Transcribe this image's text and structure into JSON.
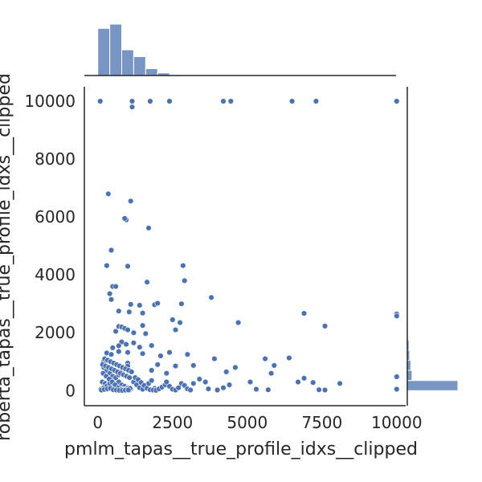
{
  "chart_data": {
    "type": "scatter",
    "kind": "jointplot with marginal histograms",
    "xlabel": "pmlm_tapas__true_profile_idxs__clipped",
    "ylabel": "roberta_tapas__true_profile_idxs__clipped",
    "xlim": [
      -450,
      10300
    ],
    "ylim": [
      -520,
      10500
    ],
    "xticks": [
      0,
      2500,
      5000,
      7500,
      10000
    ],
    "yticks": [
      0,
      2000,
      4000,
      6000,
      8000,
      10000
    ],
    "grid": false,
    "marker_color": "#4c72b0",
    "hist_color": "#4c72b0",
    "points": [
      [
        80,
        10000
      ],
      [
        1150,
        10000
      ],
      [
        1750,
        10000
      ],
      [
        2400,
        10000
      ],
      [
        4200,
        10000
      ],
      [
        4450,
        10000
      ],
      [
        6500,
        10000
      ],
      [
        7300,
        10000
      ],
      [
        10000,
        10000
      ],
      [
        1150,
        9800
      ],
      [
        350,
        6800
      ],
      [
        1100,
        6550
      ],
      [
        950,
        5900
      ],
      [
        900,
        5950
      ],
      [
        1700,
        5620
      ],
      [
        450,
        4850
      ],
      [
        300,
        4320
      ],
      [
        1000,
        4300
      ],
      [
        2850,
        4320
      ],
      [
        2900,
        3800
      ],
      [
        1650,
        3750
      ],
      [
        3800,
        3220
      ],
      [
        500,
        3600
      ],
      [
        600,
        3600
      ],
      [
        400,
        3350
      ],
      [
        450,
        3150
      ],
      [
        1100,
        2980
      ],
      [
        1400,
        2950
      ],
      [
        1900,
        2970
      ],
      [
        2000,
        3020
      ],
      [
        2800,
        3000
      ],
      [
        700,
        2750
      ],
      [
        1050,
        2720
      ],
      [
        1500,
        2680
      ],
      [
        2500,
        2450
      ],
      [
        2750,
        2350
      ],
      [
        2600,
        2100
      ],
      [
        4700,
        2350
      ],
      [
        6900,
        2670
      ],
      [
        7600,
        2230
      ],
      [
        10000,
        2650
      ],
      [
        10000,
        2580
      ],
      [
        700,
        2220
      ],
      [
        800,
        2200
      ],
      [
        900,
        2150
      ],
      [
        1000,
        2100
      ],
      [
        600,
        2050
      ],
      [
        1200,
        2000
      ],
      [
        1500,
        2250
      ],
      [
        1600,
        1970
      ],
      [
        800,
        1680
      ],
      [
        950,
        1600
      ],
      [
        1200,
        1650
      ],
      [
        1400,
        1500
      ],
      [
        1800,
        1560
      ],
      [
        700,
        1550
      ],
      [
        500,
        1480
      ],
      [
        300,
        1300
      ],
      [
        450,
        1250
      ],
      [
        700,
        1350
      ],
      [
        1000,
        1320
      ],
      [
        1500,
        1280
      ],
      [
        2100,
        1200
      ],
      [
        2400,
        1320
      ],
      [
        3000,
        1250
      ],
      [
        3900,
        1100
      ],
      [
        5600,
        1100
      ],
      [
        6400,
        1130
      ],
      [
        200,
        1000
      ],
      [
        1000,
        950
      ],
      [
        2000,
        900
      ],
      [
        2600,
        850
      ],
      [
        3200,
        870
      ],
      [
        4300,
        650
      ],
      [
        4600,
        800
      ],
      [
        5900,
        870
      ],
      [
        5800,
        600
      ],
      [
        2300,
        600
      ],
      [
        1800,
        700
      ],
      [
        200,
        800
      ],
      [
        300,
        700
      ],
      [
        400,
        600
      ],
      [
        500,
        500
      ],
      [
        600,
        400
      ],
      [
        700,
        300
      ],
      [
        800,
        200
      ],
      [
        900,
        150
      ],
      [
        1000,
        100
      ],
      [
        1100,
        50
      ],
      [
        150,
        300
      ],
      [
        250,
        250
      ],
      [
        350,
        200
      ],
      [
        450,
        150
      ],
      [
        550,
        100
      ],
      [
        650,
        80
      ],
      [
        750,
        60
      ],
      [
        850,
        40
      ],
      [
        950,
        20
      ],
      [
        1050,
        10
      ],
      [
        100,
        50
      ],
      [
        200,
        100
      ],
      [
        300,
        150
      ],
      [
        400,
        250
      ],
      [
        500,
        350
      ],
      [
        600,
        450
      ],
      [
        700,
        550
      ],
      [
        800,
        650
      ],
      [
        900,
        750
      ],
      [
        1000,
        850
      ],
      [
        180,
        600
      ],
      [
        280,
        500
      ],
      [
        380,
        400
      ],
      [
        480,
        300
      ],
      [
        580,
        200
      ],
      [
        680,
        100
      ],
      [
        780,
        50
      ],
      [
        880,
        30
      ],
      [
        980,
        60
      ],
      [
        1080,
        80
      ],
      [
        120,
        20
      ],
      [
        220,
        40
      ],
      [
        320,
        60
      ],
      [
        420,
        80
      ],
      [
        520,
        30
      ],
      [
        620,
        20
      ],
      [
        720,
        10
      ],
      [
        820,
        5
      ],
      [
        920,
        15
      ],
      [
        1020,
        25
      ],
      [
        1200,
        300
      ],
      [
        1300,
        200
      ],
      [
        1400,
        100
      ],
      [
        1500,
        50
      ],
      [
        1600,
        150
      ],
      [
        1700,
        250
      ],
      [
        1800,
        350
      ],
      [
        1900,
        80
      ],
      [
        2000,
        40
      ],
      [
        1250,
        450
      ],
      [
        1350,
        380
      ],
      [
        1450,
        280
      ],
      [
        1550,
        180
      ],
      [
        1650,
        80
      ],
      [
        1750,
        30
      ],
      [
        1850,
        20
      ],
      [
        1950,
        10
      ],
      [
        2050,
        60
      ],
      [
        2150,
        120
      ],
      [
        2250,
        200
      ],
      [
        2300,
        300
      ],
      [
        2400,
        150
      ],
      [
        2500,
        50
      ],
      [
        2600,
        20
      ],
      [
        2700,
        100
      ],
      [
        2800,
        250
      ],
      [
        2900,
        180
      ],
      [
        3000,
        60
      ],
      [
        3100,
        20
      ],
      [
        3200,
        250
      ],
      [
        3400,
        400
      ],
      [
        3600,
        300
      ],
      [
        3700,
        60
      ],
      [
        4000,
        20
      ],
      [
        4200,
        100
      ],
      [
        4400,
        200
      ],
      [
        5100,
        300
      ],
      [
        5300,
        50
      ],
      [
        5700,
        30
      ],
      [
        6700,
        300
      ],
      [
        6900,
        430
      ],
      [
        7200,
        280
      ],
      [
        7400,
        30
      ],
      [
        7600,
        20
      ],
      [
        8100,
        250
      ],
      [
        10000,
        480
      ],
      [
        10000,
        50
      ],
      [
        160,
        900
      ],
      [
        260,
        850
      ],
      [
        360,
        800
      ],
      [
        460,
        750
      ],
      [
        560,
        700
      ],
      [
        660,
        650
      ],
      [
        760,
        600
      ],
      [
        860,
        550
      ],
      [
        960,
        500
      ],
      [
        1060,
        450
      ],
      [
        230,
        1100
      ],
      [
        330,
        1050
      ],
      [
        430,
        1000
      ],
      [
        530,
        950
      ],
      [
        630,
        900
      ],
      [
        730,
        850
      ],
      [
        830,
        800
      ],
      [
        930,
        750
      ],
      [
        1030,
        700
      ],
      [
        1130,
        650
      ]
    ],
    "x_hist": {
      "bin_edges": [
        0,
        400,
        800,
        1200,
        1600,
        2000,
        2400,
        2800,
        3200
      ],
      "counts": [
        55,
        60,
        30,
        22,
        8,
        3,
        1,
        0.5
      ]
    },
    "y_hist": {
      "bin_edges": [
        0,
        350,
        700,
        1050,
        1400,
        1750,
        2100,
        2450,
        2800,
        10000,
        10400
      ],
      "counts": [
        85,
        8,
        6,
        4,
        3,
        1.5,
        1,
        0.5,
        0,
        0.6
      ]
    }
  }
}
